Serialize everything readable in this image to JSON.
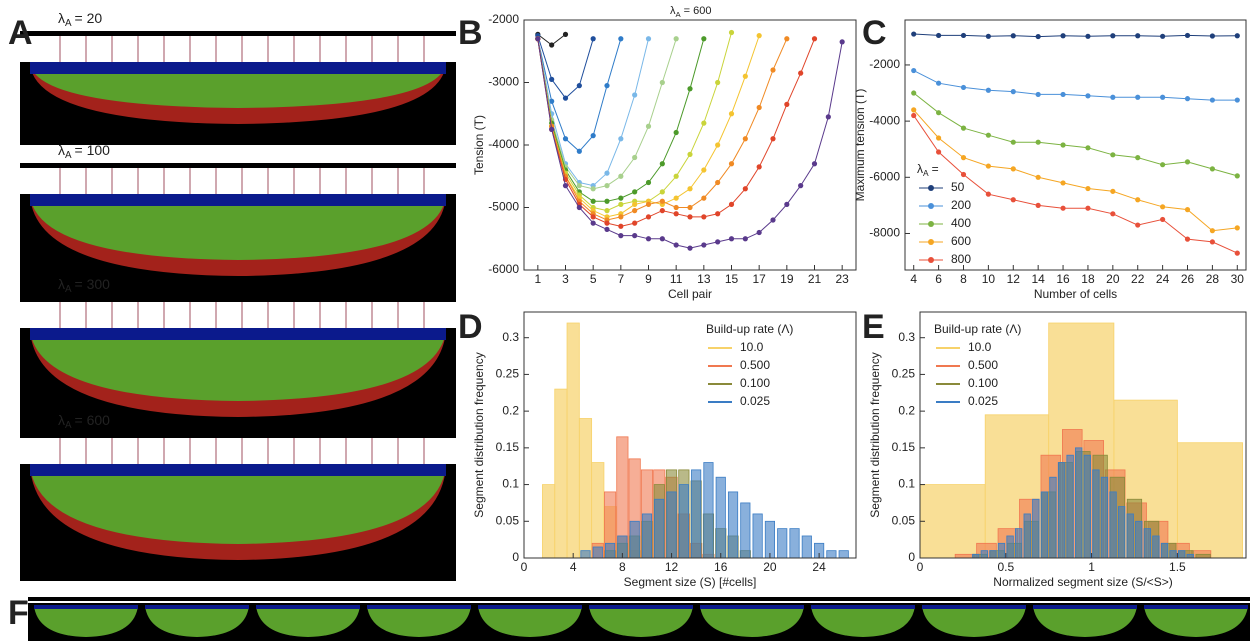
{
  "panel_labels": [
    "A",
    "B",
    "C",
    "D",
    "E",
    "F"
  ],
  "panel_a": {
    "labels": [
      {
        "symbol": "λ",
        "subscript": "A",
        "text": "= 20"
      },
      {
        "symbol": "λ",
        "subscript": "A",
        "text": "= 100"
      },
      {
        "symbol": "λ",
        "subscript": "A",
        "text": "= 300"
      },
      {
        "symbol": "λ",
        "subscript": "A",
        "text": "= 600"
      }
    ]
  },
  "chart_data": [
    {
      "type": "line",
      "title": {
        "symbol": "λ",
        "subscript": "A",
        "text": "= 600"
      },
      "x_label": "Cell pair",
      "y_label": "Tension (T)",
      "x": [
        1,
        2,
        3,
        4,
        5,
        6,
        7,
        8,
        9,
        10,
        11,
        12,
        13,
        14,
        15,
        16,
        17,
        18,
        19,
        20,
        21,
        22,
        23
      ],
      "xlim": [
        0,
        24
      ],
      "ylim": [
        -6000,
        -2000
      ],
      "xticks": [
        1,
        3,
        5,
        7,
        9,
        11,
        13,
        15,
        17,
        19,
        21,
        23
      ],
      "yticks": [
        -6000,
        -5000,
        -4000,
        -3000,
        -2000
      ],
      "series": [
        {
          "color": "#222222",
          "values": [
            -2230,
            -2400,
            -2230,
            null,
            null,
            null,
            null,
            null,
            null,
            null,
            null,
            null,
            null,
            null,
            null,
            null,
            null,
            null,
            null,
            null,
            null,
            null,
            null
          ]
        },
        {
          "color": "#1f4e9c",
          "values": [
            -2250,
            -2950,
            -3250,
            -3050,
            -2300,
            null,
            null,
            null,
            null,
            null,
            null,
            null,
            null,
            null,
            null,
            null,
            null,
            null,
            null,
            null,
            null,
            null,
            null
          ]
        },
        {
          "color": "#2f7cc9",
          "values": [
            -2300,
            -3300,
            -3900,
            -4100,
            -3850,
            -3050,
            -2300,
            null,
            null,
            null,
            null,
            null,
            null,
            null,
            null,
            null,
            null,
            null,
            null,
            null,
            null,
            null,
            null
          ]
        },
        {
          "color": "#7ab8e8",
          "values": [
            -2300,
            -3500,
            -4300,
            -4600,
            -4650,
            -4450,
            -3900,
            -3200,
            -2300,
            null,
            null,
            null,
            null,
            null,
            null,
            null,
            null,
            null,
            null,
            null,
            null,
            null,
            null
          ]
        },
        {
          "color": "#a8d08d",
          "values": [
            -2300,
            -3600,
            -4350,
            -4650,
            -4700,
            -4650,
            -4500,
            -4200,
            -3700,
            -3000,
            -2300,
            null,
            null,
            null,
            null,
            null,
            null,
            null,
            null,
            null,
            null,
            null,
            null
          ]
        },
        {
          "color": "#4c9a2a",
          "values": [
            -2300,
            -3650,
            -4400,
            -4750,
            -4900,
            -4900,
            -4850,
            -4750,
            -4600,
            -4300,
            -3800,
            -3100,
            -2300,
            null,
            null,
            null,
            null,
            null,
            null,
            null,
            null,
            null,
            null
          ]
        },
        {
          "color": "#c9d43a",
          "values": [
            -2300,
            -3700,
            -4450,
            -4800,
            -5000,
            -5050,
            -4950,
            -4900,
            -4900,
            -4750,
            -4500,
            -4150,
            -3650,
            -3000,
            -2200,
            null,
            null,
            null,
            null,
            null,
            null,
            null,
            null
          ]
        },
        {
          "color": "#f4c430",
          "values": [
            -2300,
            -3700,
            -4500,
            -4850,
            -5050,
            -5150,
            -5100,
            -4950,
            -4900,
            -4950,
            -4850,
            -4700,
            -4400,
            -4000,
            -3500,
            -2900,
            -2250,
            null,
            null,
            null,
            null,
            null,
            null
          ]
        },
        {
          "color": "#f08a24",
          "values": [
            -2300,
            -3700,
            -4500,
            -4900,
            -5100,
            -5200,
            -5150,
            -5050,
            -4950,
            -4900,
            -5000,
            -5000,
            -4850,
            -4600,
            -4300,
            -3900,
            -3400,
            -2800,
            -2300,
            null,
            null,
            null,
            null
          ]
        },
        {
          "color": "#e0452a",
          "values": [
            -2300,
            -3750,
            -4550,
            -4950,
            -5150,
            -5250,
            -5300,
            -5250,
            -5150,
            -5050,
            -5100,
            -5150,
            -5150,
            -5100,
            -4950,
            -4700,
            -4350,
            -3900,
            -3350,
            -2850,
            -2300,
            null,
            null
          ]
        },
        {
          "color": "#5a3a8c",
          "values": [
            -2300,
            -3750,
            -4650,
            -5000,
            -5250,
            -5350,
            -5450,
            -5450,
            -5500,
            -5500,
            -5600,
            -5650,
            -5600,
            -5550,
            -5500,
            -5500,
            -5400,
            -5200,
            -4950,
            -4650,
            -4300,
            -3550,
            -2350
          ]
        }
      ]
    },
    {
      "type": "line",
      "x_label": "Number of cells",
      "y_label": "Maximum tension (T)",
      "legend_title": {
        "symbol": "λ",
        "subscript": "A",
        "text": "="
      },
      "legend": "lower left",
      "x": [
        4,
        6,
        8,
        10,
        12,
        14,
        16,
        18,
        20,
        22,
        24,
        26,
        28,
        30
      ],
      "xlim": [
        3.3,
        30.7
      ],
      "ylim": [
        -9300,
        -400
      ],
      "xticks": [
        4,
        6,
        8,
        10,
        12,
        14,
        16,
        18,
        20,
        22,
        24,
        26,
        28,
        30
      ],
      "yticks": [
        -8000,
        -6000,
        -4000,
        -2000
      ],
      "series": [
        {
          "name": "50",
          "color": "#1f3f7a",
          "values": [
            -900,
            -950,
            -950,
            -980,
            -960,
            -990,
            -960,
            -980,
            -960,
            -960,
            -980,
            -950,
            -970,
            -960
          ]
        },
        {
          "name": "200",
          "color": "#4a90d9",
          "values": [
            -2200,
            -2650,
            -2800,
            -2900,
            -2950,
            -3050,
            -3050,
            -3100,
            -3150,
            -3150,
            -3150,
            -3200,
            -3250,
            -3250
          ]
        },
        {
          "name": "400",
          "color": "#7cb342",
          "values": [
            -3000,
            -3700,
            -4250,
            -4500,
            -4750,
            -4750,
            -4850,
            -4950,
            -5200,
            -5300,
            -5550,
            -5450,
            -5700,
            -5950
          ]
        },
        {
          "name": "600",
          "color": "#f5a623",
          "values": [
            -3600,
            -4600,
            -5300,
            -5600,
            -5700,
            -6000,
            -6200,
            -6400,
            -6500,
            -6800,
            -7050,
            -7150,
            -7900,
            -7800
          ]
        },
        {
          "name": "800",
          "color": "#e8503a",
          "values": [
            -3800,
            -5100,
            -5900,
            -6600,
            -6800,
            -7000,
            -7100,
            -7100,
            -7300,
            -7700,
            -7500,
            -8200,
            -8300,
            -8700
          ]
        }
      ]
    },
    {
      "type": "histogram",
      "x_label": "Segment size (S)  [#cells]",
      "y_label": "Segment distribution frequency",
      "legend_title": "Build-up rate (Λ)",
      "legend": "upper right",
      "xlim": [
        0,
        27
      ],
      "ylim": [
        0,
        0.335
      ],
      "xticks": [
        0,
        4,
        8,
        12,
        16,
        20,
        24
      ],
      "yticks": [
        0,
        0.05,
        0.1,
        0.15,
        0.2,
        0.25,
        0.3
      ],
      "series": [
        {
          "name": "10.0",
          "color": "#f7d26a",
          "bins": [
            1.5,
            2.5,
            3.5,
            4.5,
            5.5,
            6.5,
            7.5,
            8.5,
            9.5,
            10.5,
            11.5,
            12.5,
            13.5,
            14.5,
            15.5,
            16.5,
            17.5,
            18.5,
            19.5,
            20.5,
            21.5,
            22.5,
            23.5,
            24.5,
            25.5,
            26.5
          ],
          "values": [
            0.1,
            0.23,
            0.32,
            0.19,
            0.13,
            0.07,
            0.03,
            0.01,
            0,
            0,
            0,
            0,
            0,
            0,
            0,
            0,
            0,
            0,
            0,
            0,
            0,
            0,
            0,
            0,
            0
          ]
        },
        {
          "name": "0.500",
          "color": "#f07850",
          "bins": [
            1.5,
            2.5,
            3.5,
            4.5,
            5.5,
            6.5,
            7.5,
            8.5,
            9.5,
            10.5,
            11.5,
            12.5,
            13.5,
            14.5,
            15.5,
            16.5,
            17.5,
            18.5,
            19.5,
            20.5,
            21.5,
            22.5,
            23.5,
            24.5,
            25.5,
            26.5
          ],
          "values": [
            0,
            0,
            0,
            0,
            0.02,
            0.09,
            0.165,
            0.135,
            0.12,
            0.12,
            0.11,
            0.06,
            0.02,
            0.005,
            0,
            0,
            0,
            0,
            0,
            0,
            0,
            0,
            0,
            0,
            0
          ]
        },
        {
          "name": "0.100",
          "color": "#8a8a3a",
          "bins": [
            1.5,
            2.5,
            3.5,
            4.5,
            5.5,
            6.5,
            7.5,
            8.5,
            9.5,
            10.5,
            11.5,
            12.5,
            13.5,
            14.5,
            15.5,
            16.5,
            17.5,
            18.5,
            19.5,
            20.5,
            21.5,
            22.5,
            23.5,
            24.5,
            25.5,
            26.5
          ],
          "values": [
            0,
            0,
            0,
            0,
            0,
            0.01,
            0.02,
            0.03,
            0.05,
            0.1,
            0.12,
            0.12,
            0.105,
            0.06,
            0.04,
            0.03,
            0.01,
            0,
            0,
            0,
            0,
            0,
            0,
            0,
            0
          ]
        },
        {
          "name": "0.025",
          "color": "#3a7cc4",
          "bins": [
            1.5,
            2.5,
            3.5,
            4.5,
            5.5,
            6.5,
            7.5,
            8.5,
            9.5,
            10.5,
            11.5,
            12.5,
            13.5,
            14.5,
            15.5,
            16.5,
            17.5,
            18.5,
            19.5,
            20.5,
            21.5,
            22.5,
            23.5,
            24.5,
            25.5,
            26.5
          ],
          "values": [
            0,
            0,
            0,
            0.01,
            0.015,
            0.02,
            0.03,
            0.05,
            0.06,
            0.08,
            0.09,
            0.1,
            0.12,
            0.13,
            0.11,
            0.09,
            0.075,
            0.06,
            0.05,
            0.04,
            0.04,
            0.03,
            0.02,
            0.01,
            0.01
          ]
        }
      ]
    },
    {
      "type": "histogram",
      "x_label": "Normalized segment size (S/<S>)",
      "y_label": "Segment distribution frequency",
      "legend_title": "Build-up rate (Λ)",
      "legend": "upper left",
      "xlim": [
        0,
        1.9
      ],
      "ylim": [
        0,
        0.335
      ],
      "xticks": [
        0,
        0.5,
        1,
        1.5
      ],
      "yticks": [
        0,
        0.05,
        0.1,
        0.15,
        0.2,
        0.25,
        0.3
      ],
      "series": [
        {
          "name": "10.0",
          "color": "#f7d26a",
          "bins": [
            0,
            0.38,
            0.75,
            1.13,
            1.5,
            1.88
          ],
          "values": [
            0.1,
            0.195,
            0.32,
            0.215,
            0.157
          ]
        },
        {
          "name": "0.500",
          "color": "#f07850",
          "bins": [
            0.2,
            0.325,
            0.45,
            0.575,
            0.7,
            0.825,
            0.95,
            1.075,
            1.2,
            1.325,
            1.45,
            1.575,
            1.7
          ],
          "values": [
            0.005,
            0.02,
            0.04,
            0.08,
            0.14,
            0.175,
            0.16,
            0.12,
            0.075,
            0.05,
            0.02,
            0.01
          ]
        },
        {
          "name": "0.100",
          "color": "#8a8a3a",
          "bins": [
            0.3,
            0.4,
            0.5,
            0.6,
            0.7,
            0.8,
            0.9,
            1.0,
            1.1,
            1.2,
            1.3,
            1.4,
            1.5,
            1.6,
            1.7
          ],
          "values": [
            0.005,
            0.01,
            0.02,
            0.05,
            0.09,
            0.13,
            0.145,
            0.14,
            0.11,
            0.08,
            0.05,
            0.02,
            0.01,
            0.005
          ]
        },
        {
          "name": "0.025",
          "color": "#3a7cc4",
          "bins": [
            0.3,
            0.35,
            0.4,
            0.45,
            0.5,
            0.55,
            0.6,
            0.65,
            0.7,
            0.75,
            0.8,
            0.85,
            0.9,
            0.95,
            1.0,
            1.05,
            1.1,
            1.15,
            1.2,
            1.25,
            1.3,
            1.35,
            1.4,
            1.45,
            1.5,
            1.55,
            1.6
          ],
          "values": [
            0.005,
            0.01,
            0.01,
            0.02,
            0.03,
            0.04,
            0.06,
            0.08,
            0.09,
            0.11,
            0.13,
            0.14,
            0.15,
            0.14,
            0.12,
            0.11,
            0.09,
            0.07,
            0.06,
            0.05,
            0.04,
            0.03,
            0.02,
            0.01,
            0.01,
            0.005
          ]
        }
      ]
    }
  ]
}
